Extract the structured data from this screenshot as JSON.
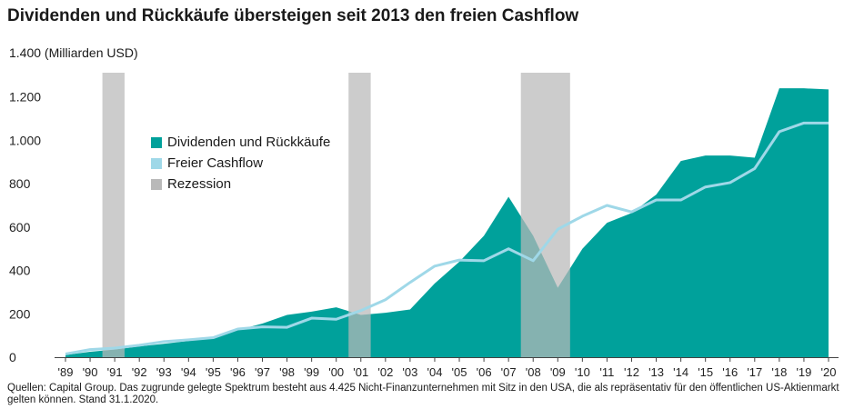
{
  "header": {
    "title": "Dividenden und Rückkäufe übersteigen seit 2013 den freien Cashflow",
    "y_unit": "1.400 (Milliarden USD)"
  },
  "colors": {
    "dividends": "#00a19b",
    "free_cashflow": "#9fd8e8",
    "recession": "#b9b9b9",
    "axis": "#444444"
  },
  "legend": {
    "items": [
      {
        "label": "Dividenden und Rückkäufe",
        "color": "#00a19b"
      },
      {
        "label": "Freier Cashflow",
        "color": "#9fd8e8"
      },
      {
        "label": "Rezession",
        "color": "#b9b9b9"
      }
    ]
  },
  "source": "Quellen: Capital Group. Das zugrunde gelegte Spektrum besteht aus 4.425 Nicht-Finanzunternehmen mit Sitz in den USA, die als repräsentativ für den öffentlichen US-Aktienmarkt gelten können. Stand 31.1.2020.",
  "chart_data": {
    "type": "area",
    "title": "Dividenden und Rückkäufe übersteigen seit 2013 den freien Cashflow",
    "ylabel": "(Milliarden USD)",
    "ylim": [
      0,
      1400
    ],
    "yticks": [
      0,
      200,
      400,
      600,
      800,
      1000,
      1200
    ],
    "ytick_labels": [
      "0",
      "200",
      "400",
      "600",
      "800",
      "1.000",
      "1.200"
    ],
    "extra_ytick_label": "1.400",
    "categories": [
      "'89",
      "'90",
      "'91",
      "'92",
      "'93",
      "'94",
      "'95",
      "'96",
      "'97",
      "'98",
      "'99",
      "'00",
      "'01",
      "'02",
      "'03",
      "'04",
      "'05",
      "'06",
      "'07",
      "'08",
      "'09",
      "'10",
      "'11",
      "'12",
      "'13",
      "'14",
      "'15",
      "'16",
      "'17",
      "'18",
      "'19",
      "'20"
    ],
    "x": [
      1989,
      1990,
      1991,
      1992,
      1993,
      1994,
      1995,
      1996,
      1997,
      1998,
      1999,
      2000,
      2001,
      2002,
      2003,
      2004,
      2005,
      2006,
      2007,
      2008,
      2009,
      2010,
      2011,
      2012,
      2013,
      2014,
      2015,
      2016,
      2017,
      2018,
      2019,
      2020
    ],
    "series": [
      {
        "name": "Dividenden und Rückkäufe",
        "kind": "area",
        "values": [
          10,
          25,
          35,
          50,
          62,
          75,
          92,
          125,
          155,
          195,
          210,
          230,
          195,
          205,
          220,
          340,
          440,
          560,
          740,
          560,
          320,
          500,
          620,
          665,
          750,
          905,
          930,
          930,
          920,
          1240,
          1240,
          1235
        ]
      },
      {
        "name": "Freier Cashflow",
        "kind": "line",
        "values": [
          15,
          35,
          42,
          55,
          72,
          80,
          90,
          130,
          140,
          138,
          180,
          175,
          215,
          265,
          345,
          420,
          448,
          445,
          500,
          445,
          590,
          650,
          700,
          670,
          725,
          725,
          785,
          805,
          870,
          1040,
          1080,
          1080
        ]
      }
    ],
    "recessions": [
      {
        "name": "Rezession",
        "start": 1990.5,
        "end": 1991.4
      },
      {
        "name": "Rezession",
        "start": 2000.5,
        "end": 2001.4
      },
      {
        "name": "Rezession",
        "start": 2007.5,
        "end": 2009.5
      }
    ],
    "grid": false,
    "legend_position": "upper-left inside"
  }
}
